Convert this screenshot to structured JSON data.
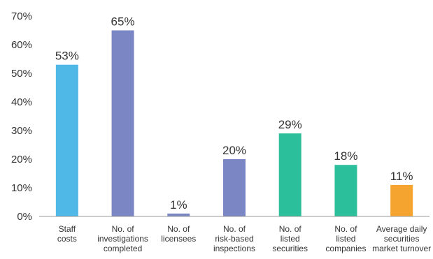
{
  "chart_data": {
    "type": "bar",
    "title": "",
    "xlabel": "",
    "ylabel": "",
    "ylim": [
      0,
      70
    ],
    "yticks": [
      "0%",
      "10%",
      "20%",
      "30%",
      "40%",
      "50%",
      "60%",
      "70%"
    ],
    "grid": false,
    "legend": "none",
    "categories": [
      [
        "Staff",
        "costs"
      ],
      [
        "No. of",
        "investigations",
        "completed"
      ],
      [
        "No. of",
        "licensees"
      ],
      [
        "No. of",
        "risk-based",
        "inspections"
      ],
      [
        "No. of",
        "listed",
        "securities"
      ],
      [
        "No. of",
        "listed",
        "companies"
      ],
      [
        "Average daily",
        "securities",
        "market turnover"
      ]
    ],
    "values": [
      53,
      65,
      1,
      20,
      29,
      18,
      11
    ],
    "value_labels": [
      "53%",
      "65%",
      "1%",
      "20%",
      "29%",
      "18%",
      "11%"
    ],
    "colors": [
      "#4fb8e6",
      "#7b86c4",
      "#7b86c4",
      "#7b86c4",
      "#2cbf9c",
      "#2cbf9c",
      "#f5a52f"
    ],
    "axis_color": "#999999"
  }
}
